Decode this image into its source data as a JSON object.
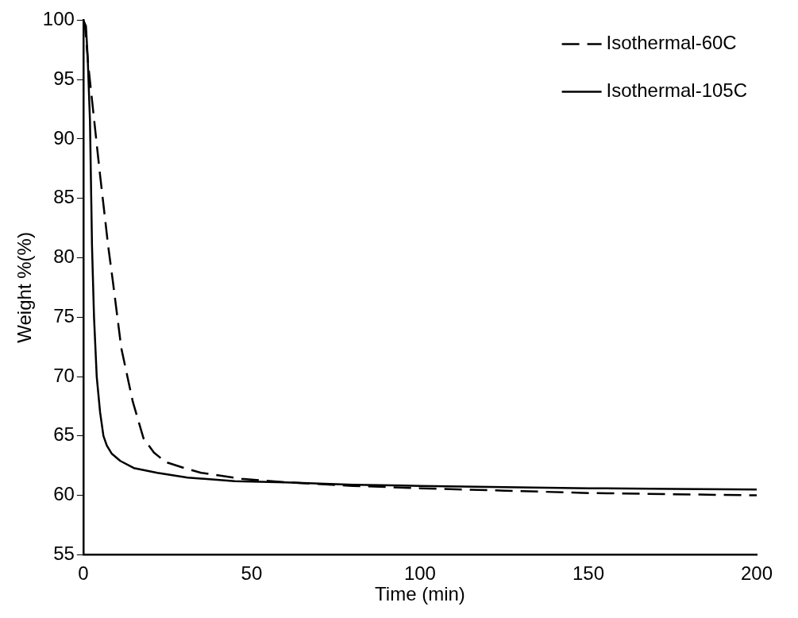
{
  "chart_data": {
    "type": "line",
    "xlabel": "Time (min)",
    "ylabel": "Weight %(%)",
    "xlim": [
      0,
      200
    ],
    "ylim": [
      55,
      100
    ],
    "xticks": [
      0,
      50,
      100,
      150,
      200
    ],
    "yticks": [
      55,
      60,
      65,
      70,
      75,
      80,
      85,
      90,
      95,
      100
    ],
    "grid": false,
    "legend": "top right",
    "marker": "none",
    "series": [
      {
        "name": "Isothermal-60C",
        "color": "#000000",
        "line_style": "dashed",
        "x": [
          0,
          0.5,
          1.5,
          3.2,
          4.9,
          7.4,
          8.8,
          11.3,
          14.7,
          17.9,
          21,
          24.5,
          30,
          35,
          47,
          60,
          80,
          100,
          125,
          150,
          175,
          200
        ],
        "values": [
          100,
          99.6,
          96.2,
          91.7,
          87.2,
          81,
          78,
          72.4,
          67.9,
          64.8,
          63.6,
          62.8,
          62.3,
          61.9,
          61.4,
          61.1,
          60.8,
          60.6,
          60.4,
          60.2,
          60.1,
          60.0
        ]
      },
      {
        "name": "Isothermal-105C",
        "color": "#000000",
        "line_style": "solid",
        "x": [
          0,
          0.8,
          1.3,
          2,
          2.6,
          3.2,
          4,
          5,
          6,
          7,
          8.5,
          11,
          15,
          22,
          31,
          45,
          60,
          80,
          100,
          125,
          150,
          175,
          200
        ],
        "values": [
          100,
          99.5,
          97,
          91.5,
          81,
          75,
          70,
          67,
          65,
          64.2,
          63.5,
          62.9,
          62.3,
          61.9,
          61.5,
          61.2,
          61.1,
          60.9,
          60.8,
          60.7,
          60.6,
          60.55,
          60.5
        ]
      }
    ]
  }
}
